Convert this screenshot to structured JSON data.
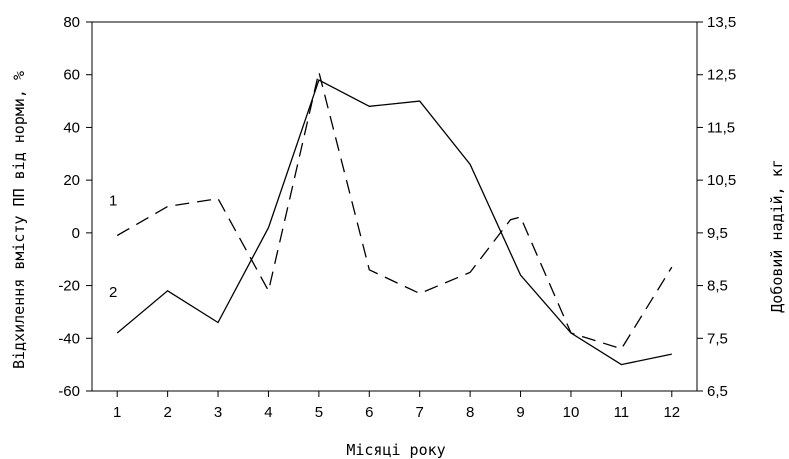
{
  "chart_data": {
    "type": "line",
    "xlabel": "Місяці року",
    "ylabel_left": "Відхилення вмісту ПП від норми, %",
    "ylabel_right": "Добовий надій, кг",
    "x": [
      1,
      2,
      3,
      4,
      5,
      6,
      7,
      8,
      9,
      10,
      11,
      12
    ],
    "xlim": [
      0.5,
      12.5
    ],
    "x_tick_labels": [
      "1",
      "2",
      "3",
      "4",
      "5",
      "6",
      "7",
      "8",
      "9",
      "10",
      "11",
      "12"
    ],
    "ylim_left": [
      -60,
      80
    ],
    "y_left_tick_labels": [
      "80",
      "60",
      "40",
      "20",
      "0",
      "-20",
      "-40",
      "-60"
    ],
    "y_left_tick_values": [
      80,
      60,
      40,
      20,
      0,
      -20,
      -40,
      -60
    ],
    "ylim_right": [
      6.5,
      13.5
    ],
    "y_right_tick_labels": [
      "13,5",
      "12,5",
      "11,5",
      "10,5",
      "9,5",
      "8,5",
      "7,5",
      "6,5"
    ],
    "y_right_tick_values": [
      13.5,
      12.5,
      11.5,
      10.5,
      9.5,
      8.5,
      7.5,
      6.5
    ],
    "grid": false,
    "series": [
      {
        "name": "1",
        "axis": "left",
        "style": "dashed",
        "color": "#000000",
        "points": [
          [
            1,
            -1
          ],
          [
            2,
            10
          ],
          [
            3,
            13
          ],
          [
            4,
            -22
          ],
          [
            5,
            61
          ],
          [
            6,
            -14
          ],
          [
            7,
            -23
          ],
          [
            8,
            -15
          ],
          [
            8.8,
            5
          ],
          [
            9,
            6
          ],
          [
            10,
            -38
          ],
          [
            11,
            -44
          ],
          [
            12,
            -13
          ]
        ]
      },
      {
        "name": "2",
        "axis": "right",
        "style": "solid",
        "color": "#000000",
        "points": [
          [
            1,
            7.6
          ],
          [
            2,
            8.4
          ],
          [
            3,
            7.8
          ],
          [
            4,
            9.6
          ],
          [
            5,
            12.4
          ],
          [
            6,
            11.9
          ],
          [
            7,
            12.0
          ],
          [
            8,
            10.8
          ],
          [
            9,
            8.7
          ],
          [
            10,
            7.6
          ],
          [
            11,
            7.0
          ],
          [
            12,
            7.2
          ]
        ]
      }
    ]
  }
}
